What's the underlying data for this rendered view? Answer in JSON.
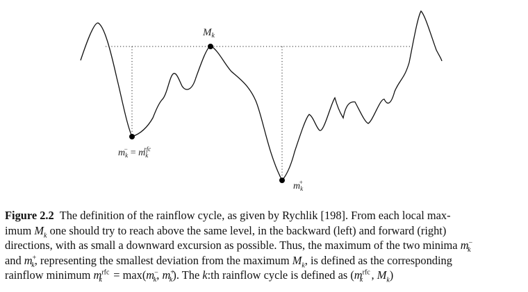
{
  "diagram": {
    "labels": {
      "max_label": "M_k",
      "left_min_label": "m_k^- = m_k^rfc",
      "right_min_label": "m_k^+"
    }
  },
  "caption": {
    "figure_number": "Figure 2.2",
    "lines": [
      "The definition of the rainflow cycle, as given by Rychlik [198]. From each local max-",
      "imum M_k one should try to reach above the same level, in the backward (left) and forward (right)",
      "directions, with as small a downward excursion as possible. Thus, the maximum of the two minima m_k^-",
      "and m_k^+, representing the smallest deviation from the maximum M_k, is defined as the corresponding",
      "rainflow minimum m_k^rfc = max(m_k^-, m_k^+). The k:th rainflow cycle is defined as (m_k^rfc, M_k)"
    ]
  }
}
